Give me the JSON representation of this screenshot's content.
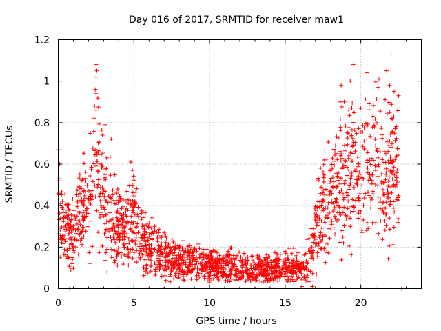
{
  "chart_data": {
    "type": "scatter",
    "title": "Day 016 of 2017, SRMTID for receiver maw1",
    "xlabel": "GPS time / hours",
    "ylabel": "SRMTID / TECUs",
    "xlim": [
      0,
      24
    ],
    "ylim": [
      0,
      1.2
    ],
    "xticks": [
      0,
      5,
      10,
      15,
      20
    ],
    "xtick_labels": [
      "0",
      "5",
      "10",
      "15",
      "20"
    ],
    "yticks": [
      0,
      0.2,
      0.4,
      0.6,
      0.8,
      1.0,
      1.2
    ],
    "ytick_labels": [
      "0",
      "0.2",
      "0.4",
      "0.6",
      "0.8",
      "1",
      "1.2"
    ],
    "grid": true,
    "marker": "plus",
    "color": "#ff0000",
    "series": [
      {
        "name": "maw1",
        "approx_point_count": 2000,
        "profile_hours": [
          0,
          0.5,
          1,
          1.5,
          2,
          2.5,
          3,
          3.5,
          4,
          4.5,
          5,
          5.5,
          6,
          7,
          8,
          9,
          10,
          11,
          12,
          13,
          14,
          15,
          16,
          16.5,
          17,
          17.5,
          18,
          18.5,
          19,
          19.5,
          20,
          20.5,
          21,
          21.5,
          22,
          22.5
        ],
        "profile_values": [
          0.32,
          0.27,
          0.25,
          0.38,
          0.42,
          0.62,
          0.45,
          0.33,
          0.3,
          0.28,
          0.33,
          0.24,
          0.2,
          0.15,
          0.13,
          0.12,
          0.11,
          0.1,
          0.09,
          0.085,
          0.09,
          0.1,
          0.1,
          0.12,
          0.25,
          0.4,
          0.45,
          0.5,
          0.55,
          0.6,
          0.52,
          0.55,
          0.58,
          0.5,
          0.55,
          0.5
        ],
        "points": [
          [
            0.0,
            0.67
          ],
          [
            0.1,
            0.6
          ],
          [
            0.05,
            0.53
          ],
          [
            2.5,
            1.08
          ],
          [
            2.55,
            1.05
          ],
          [
            2.5,
            1.02
          ],
          [
            2.45,
            0.96
          ],
          [
            2.5,
            0.94
          ],
          [
            2.4,
            0.88
          ],
          [
            2.5,
            0.86
          ],
          [
            3.1,
            0.79
          ],
          [
            3.5,
            0.72
          ],
          [
            4.8,
            0.61
          ],
          [
            4.9,
            0.57
          ],
          [
            3.2,
            0.63
          ],
          [
            1.6,
            0.35
          ],
          [
            0.9,
            0.12
          ],
          [
            0.75,
            0.0
          ],
          [
            16.1,
            0.01
          ],
          [
            22.7,
            0.0
          ],
          [
            19.5,
            1.08
          ],
          [
            19.3,
            1.0
          ],
          [
            20.4,
            1.04
          ],
          [
            21.2,
            1.01
          ],
          [
            21.15,
            0.97
          ],
          [
            21.7,
            1.05
          ],
          [
            22.0,
            1.13
          ],
          [
            21.9,
            0.98
          ],
          [
            22.2,
            0.95
          ],
          [
            22.5,
            0.93
          ],
          [
            18.7,
            0.98
          ],
          [
            18.9,
            0.9
          ],
          [
            19.4,
            0.87
          ],
          [
            20.9,
            0.78
          ],
          [
            19.3,
            0.3
          ],
          [
            16.8,
            0.01
          ]
        ]
      }
    ]
  }
}
